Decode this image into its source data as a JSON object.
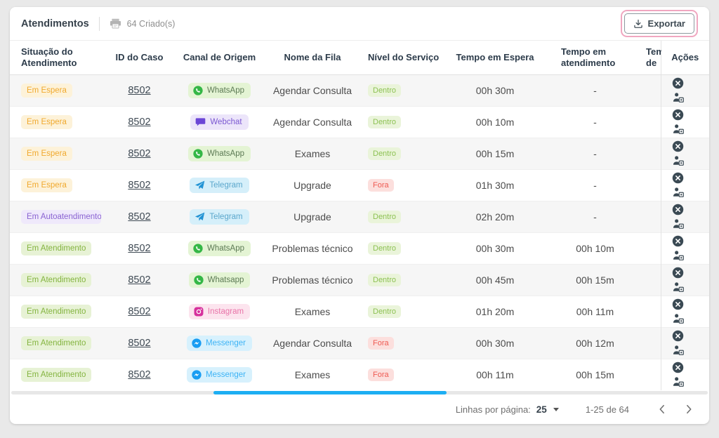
{
  "header": {
    "title": "Atendimentos",
    "created_count": "64 Criado(s)",
    "export_label": "Exportar"
  },
  "table": {
    "columns": [
      {
        "label": "Situação do Atendimento"
      },
      {
        "label": "ID do Caso"
      },
      {
        "label": "Canal de Origem"
      },
      {
        "label": "Nome da Fila"
      },
      {
        "label": "Nível do Serviço"
      },
      {
        "label": "Tempo em Espera"
      },
      {
        "label": "Tempo em atendimento"
      },
      {
        "label": "Tempo de"
      },
      {
        "label": "Ações"
      }
    ],
    "rows": [
      {
        "status": "Em Espera",
        "status_key": "espera",
        "case_id": "8502",
        "channel": "WhatsApp",
        "channel_key": "whatsapp",
        "queue": "Agendar Consulta",
        "level": "Dentro",
        "level_key": "dentro",
        "wait": "00h 30m",
        "handle": "-"
      },
      {
        "status": "Em Espera",
        "status_key": "espera",
        "case_id": "8502",
        "channel": "Webchat",
        "channel_key": "webchat",
        "queue": "Agendar Consulta",
        "level": "Dentro",
        "level_key": "dentro",
        "wait": "00h 10m",
        "handle": "-"
      },
      {
        "status": "Em Espera",
        "status_key": "espera",
        "case_id": "8502",
        "channel": "WhatsApp",
        "channel_key": "whatsapp",
        "queue": "Exames",
        "level": "Dentro",
        "level_key": "dentro",
        "wait": "00h 15m",
        "handle": "-"
      },
      {
        "status": "Em Espera",
        "status_key": "espera",
        "case_id": "8502",
        "channel": "Telegram",
        "channel_key": "telegram",
        "queue": "Upgrade",
        "level": "Fora",
        "level_key": "fora",
        "wait": "01h 30m",
        "handle": "-"
      },
      {
        "status": "Em Autoatendimento",
        "status_key": "auto",
        "case_id": "8502",
        "channel": "Telegram",
        "channel_key": "telegram",
        "queue": "Upgrade",
        "level": "Dentro",
        "level_key": "dentro",
        "wait": "02h 20m",
        "handle": "-"
      },
      {
        "status": "Em Atendimento",
        "status_key": "atendimento",
        "case_id": "8502",
        "channel": "WhatsApp",
        "channel_key": "whatsapp",
        "queue": "Problemas técnico",
        "level": "Dentro",
        "level_key": "dentro",
        "wait": "00h 30m",
        "handle": "00h 10m"
      },
      {
        "status": "Em Atendimento",
        "status_key": "atendimento",
        "case_id": "8502",
        "channel": "Whatsapp",
        "channel_key": "whatsapp",
        "queue": "Problemas técnico",
        "level": "Dentro",
        "level_key": "dentro",
        "wait": "00h 45m",
        "handle": "00h 15m"
      },
      {
        "status": "Em Atendimento",
        "status_key": "atendimento",
        "case_id": "8502",
        "channel": "Instagram",
        "channel_key": "instagram",
        "queue": "Exames",
        "level": "Dentro",
        "level_key": "dentro",
        "wait": "01h 20m",
        "handle": "00h 11m"
      },
      {
        "status": "Em Atendimento",
        "status_key": "atendimento",
        "case_id": "8502",
        "channel": "Messenger",
        "channel_key": "messenger",
        "queue": "Agendar Consulta",
        "level": "Fora",
        "level_key": "fora",
        "wait": "00h 30m",
        "handle": "00h 12m"
      },
      {
        "status": "Em Atendimento",
        "status_key": "atendimento",
        "case_id": "8502",
        "channel": "Messenger",
        "channel_key": "messenger",
        "queue": "Exames",
        "level": "Fora",
        "level_key": "fora",
        "wait": "00h 11m",
        "handle": "00h 15m"
      }
    ]
  },
  "footer": {
    "rows_per_page_label": "Linhas por página:",
    "rows_per_page_value": "25",
    "range_label": "1-25 de 64"
  },
  "colors": {
    "accent_scrollbar": "#1daef3",
    "export_highlight_ring": "#f0a7c0",
    "action_icon": "#3b4a54",
    "status": {
      "espera": {
        "bg": "#fdf2d9",
        "fg": "#f0a92e"
      },
      "auto": {
        "bg": "#efe9fb",
        "fg": "#8a63d2"
      },
      "atendimento": {
        "bg": "#e7f2d5",
        "fg": "#84b440"
      }
    },
    "channel": {
      "whatsapp": {
        "bg": "#e4f4d4",
        "fg": "#5c7a54",
        "icon": "#35b746"
      },
      "webchat": {
        "bg": "#ece5fa",
        "fg": "#7b57d2",
        "icon": "#6b46d6"
      },
      "telegram": {
        "bg": "#d5effa",
        "fg": "#5ba7cc",
        "icon": "#2293d4"
      },
      "instagram": {
        "bg": "#fce4ee",
        "fg": "#e873a8",
        "icon": "#d6309c"
      },
      "messenger": {
        "bg": "#d7f1fd",
        "fg": "#3db3f5",
        "icon": "#199df2"
      }
    },
    "level": {
      "dentro": {
        "bg": "#eaf4da",
        "fg": "#8cc152"
      },
      "fora": {
        "bg": "#fcdfdd",
        "fg": "#ee5a52"
      }
    }
  }
}
